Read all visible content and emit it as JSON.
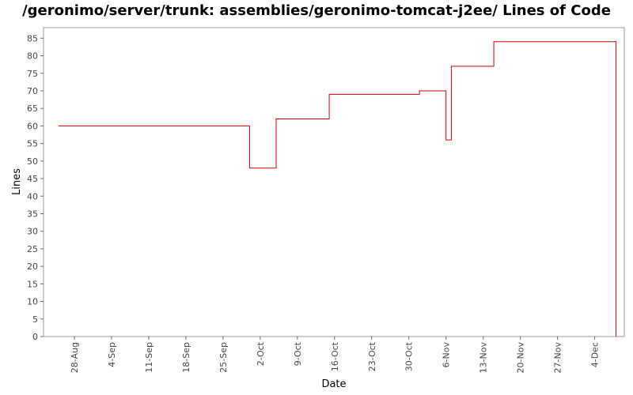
{
  "chart_data": {
    "type": "line",
    "title": "/geronimo/server/trunk: assemblies/geronimo-tomcat-j2ee/ Lines of Code",
    "xlabel": "Date",
    "ylabel": "Lines",
    "ylim": [
      0,
      88
    ],
    "yticks": [
      0,
      5,
      10,
      15,
      20,
      25,
      30,
      35,
      40,
      45,
      50,
      55,
      60,
      65,
      70,
      75,
      80,
      85
    ],
    "xticks": [
      "28-Aug",
      "4-Sep",
      "11-Sep",
      "18-Sep",
      "25-Sep",
      "2-Oct",
      "9-Oct",
      "16-Oct",
      "23-Oct",
      "30-Oct",
      "6-Nov",
      "13-Nov",
      "20-Nov",
      "27-Nov",
      "4-Dec"
    ],
    "grid": false,
    "legend": "none",
    "line_color": "#cc0000",
    "series": [
      {
        "step": true,
        "points": [
          {
            "x": "2006-08-25",
            "y": 60
          },
          {
            "x": "2006-09-30",
            "y": 48
          },
          {
            "x": "2006-10-05",
            "y": 62
          },
          {
            "x": "2006-10-15",
            "y": 69
          },
          {
            "x": "2006-11-01",
            "y": 70
          },
          {
            "x": "2006-11-06",
            "y": 56
          },
          {
            "x": "2006-11-07",
            "y": 77
          },
          {
            "x": "2006-11-15",
            "y": 84
          },
          {
            "x": "2006-12-08",
            "y": 0
          }
        ]
      }
    ]
  }
}
